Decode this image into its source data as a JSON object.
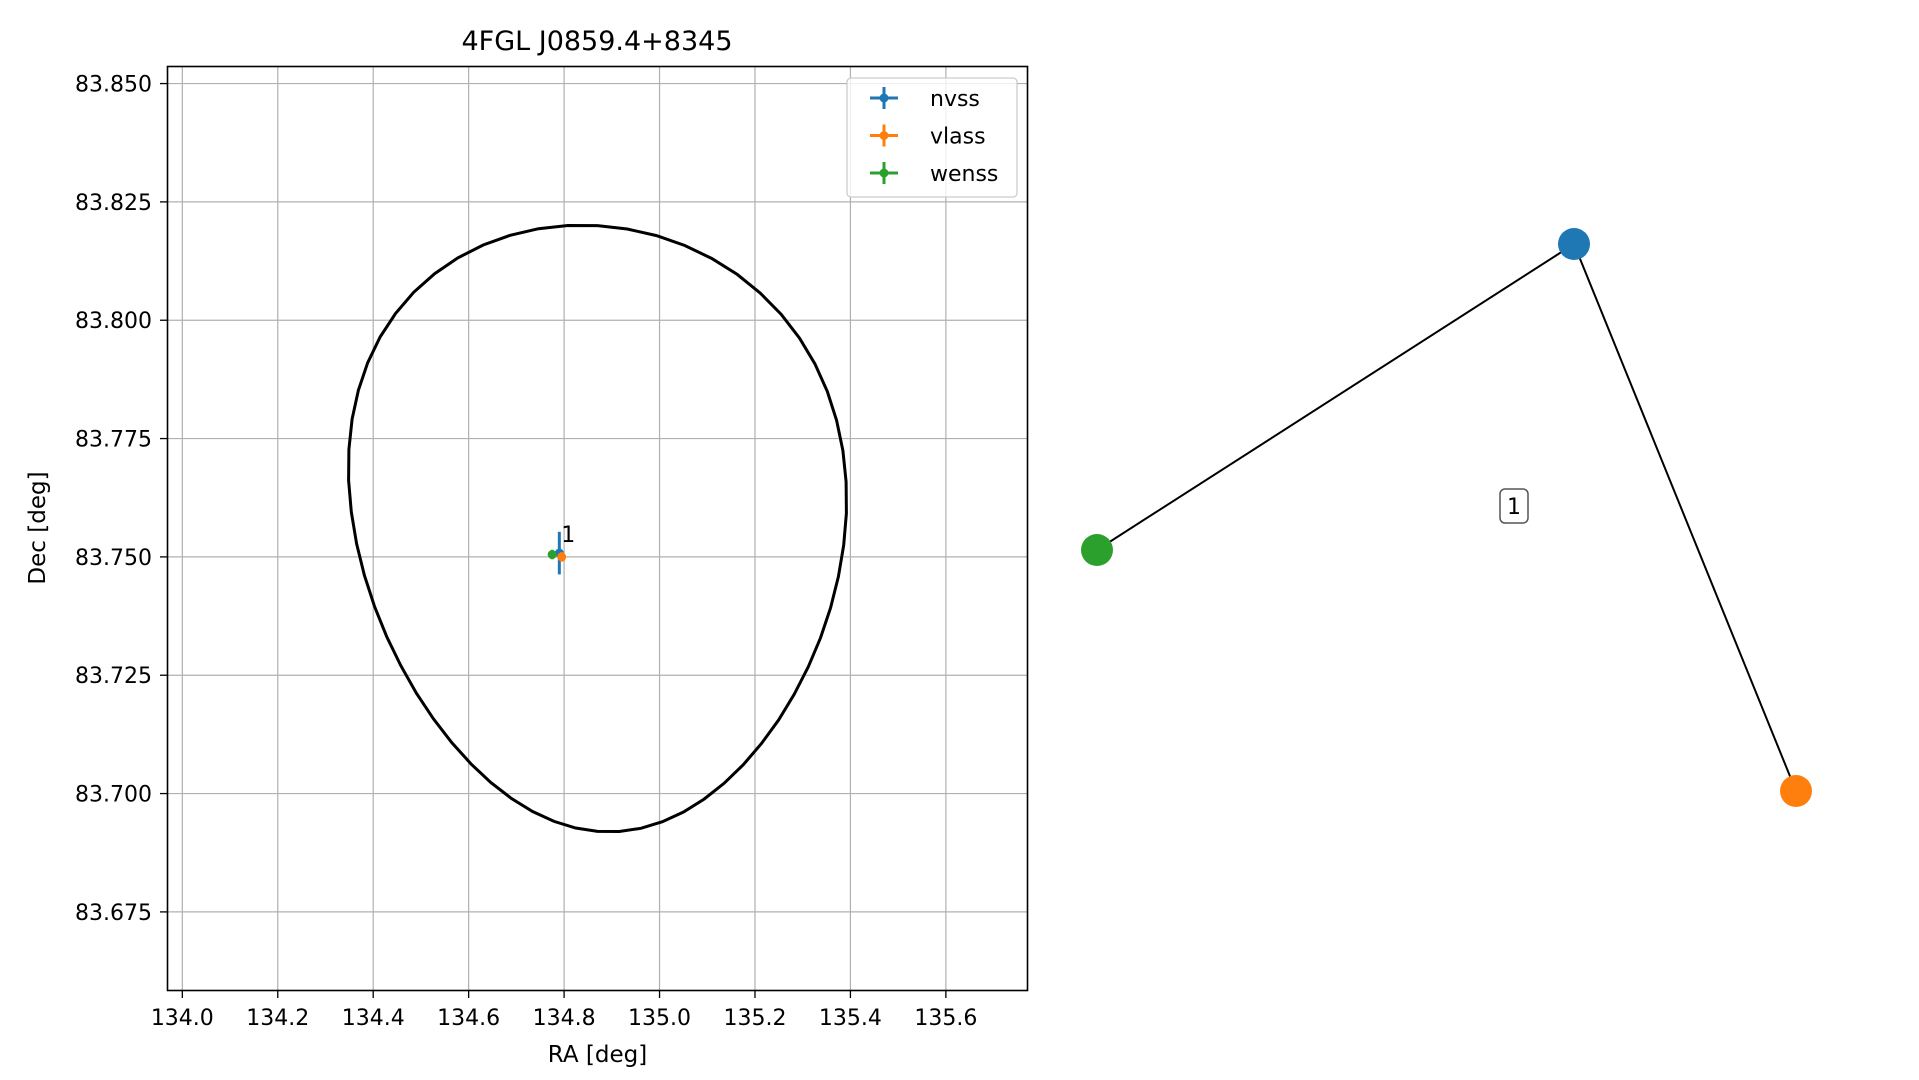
{
  "chart_data": [
    {
      "type": "scatter",
      "title": "4FGL J0859.4+8345",
      "xlabel": "RA [deg]",
      "ylabel": "Dec [deg]",
      "xlim": [
        133.97,
        135.77
      ],
      "ylim": [
        83.6585,
        83.8535
      ],
      "xticks": [
        "134.0",
        "134.2",
        "134.4",
        "134.6",
        "134.8",
        "135.0",
        "135.2",
        "135.4",
        "135.6"
      ],
      "yticks": [
        "83.675",
        "83.700",
        "83.725",
        "83.750",
        "83.775",
        "83.800",
        "83.825",
        "83.850"
      ],
      "grid": true,
      "legend_position": "upper-right",
      "series": [
        {
          "name": "nvss",
          "color": "#1f77b4",
          "points": [
            {
              "x": 134.79,
              "y": 83.7508,
              "xerr": 0.006,
              "yerr": 0.0045
            }
          ]
        },
        {
          "name": "vlass",
          "color": "#ff7f0e",
          "points": [
            {
              "x": 134.795,
              "y": 83.75,
              "xerr": 0.003,
              "yerr": 0.001
            }
          ]
        },
        {
          "name": "wenss",
          "color": "#2ca02c",
          "points": [
            {
              "x": 134.775,
              "y": 83.7505,
              "xerr": 0.003,
              "yerr": 0.001
            }
          ]
        }
      ],
      "annotations": [
        {
          "text": "1",
          "x": 134.794,
          "y": 83.7531
        }
      ],
      "ellipse": {
        "center": [
          134.87,
          83.756
        ],
        "ra_semi_axis": 0.516,
        "dec_semi_axis": 0.064,
        "color": "#000000"
      }
    },
    {
      "type": "network",
      "nodes": [
        {
          "id": "nvss",
          "color": "#1f77b4"
        },
        {
          "id": "vlass",
          "color": "#ff7f0e"
        },
        {
          "id": "wenss",
          "color": "#2ca02c"
        }
      ],
      "edges": [
        {
          "source": "wenss",
          "target": "nvss"
        },
        {
          "source": "nvss",
          "target": "vlass"
        }
      ],
      "cluster_label": "1"
    }
  ]
}
